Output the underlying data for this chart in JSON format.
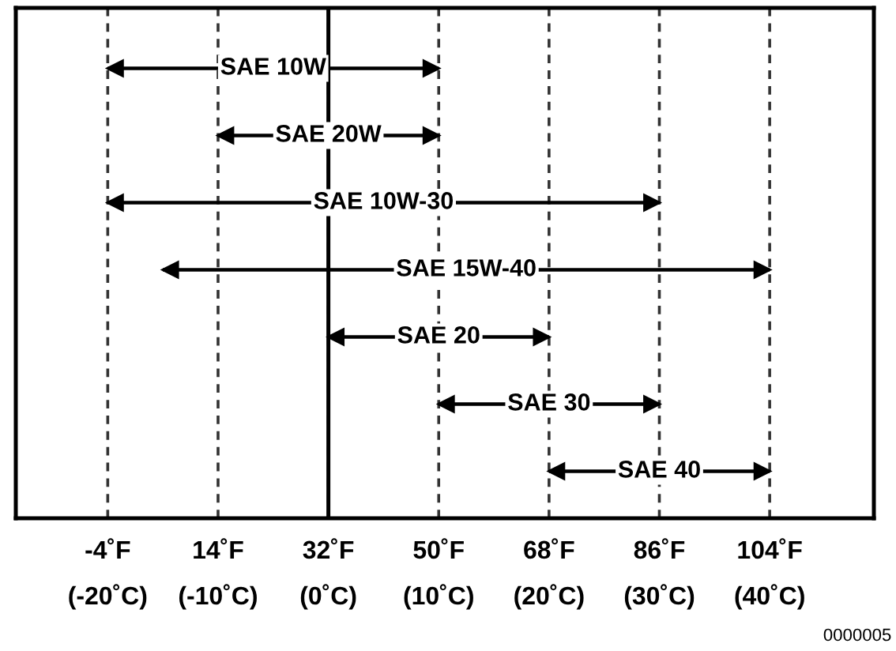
{
  "chart_data": {
    "type": "bar",
    "orientation": "horizontal",
    "categories": [
      "SAE 10W",
      "SAE 20W",
      "SAE 10W-30",
      "SAE 15W-40",
      "SAE 20",
      "SAE 30",
      "SAE 40"
    ],
    "base": [
      -4,
      14,
      -4,
      5,
      32,
      50,
      68
    ],
    "values": [
      54,
      36,
      90,
      99,
      36,
      36,
      36
    ],
    "color": "#000000",
    "xlim": [
      -19,
      121
    ],
    "xticks": [
      {
        "value": -4,
        "label": "-4˚F"
      },
      {
        "value": 14,
        "label": "14˚F"
      },
      {
        "value": 32,
        "label": "32˚F"
      },
      {
        "value": 50,
        "label": "50˚F"
      },
      {
        "value": 68,
        "label": "68˚F"
      },
      {
        "value": 86,
        "label": "86˚F"
      },
      {
        "value": 104,
        "label": "104˚F"
      }
    ],
    "x2lim": [
      -28.33,
      49.44
    ],
    "x2ticks": [
      {
        "value": -20,
        "label": "(-20˚C)"
      },
      {
        "value": -10,
        "label": "(-10˚C)"
      },
      {
        "value": 0,
        "label": "(0˚C)"
      },
      {
        "value": 10,
        "label": "(10˚C)"
      },
      {
        "value": 20,
        "label": "(20˚C)"
      },
      {
        "value": 30,
        "label": "(30˚C)"
      },
      {
        "value": 40,
        "label": "(40˚C)"
      }
    ],
    "grid": "x",
    "ref_lines": [
      {
        "axis": "x",
        "value": 32,
        "color": "#000000",
        "line_style": "solid"
      }
    ],
    "tick_labels": "x",
    "annotations": [
      "0000005"
    ]
  }
}
